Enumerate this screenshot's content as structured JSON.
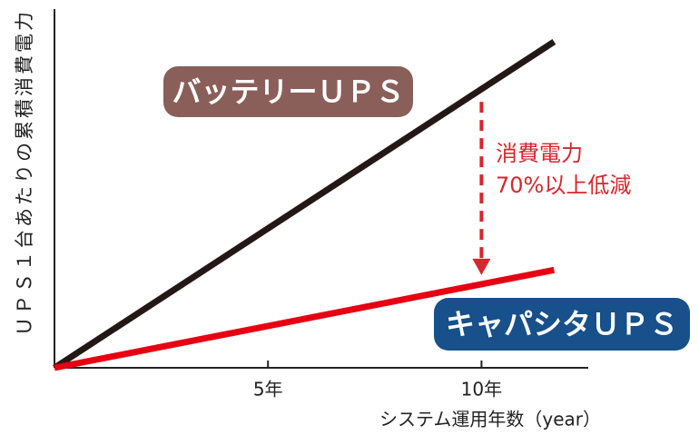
{
  "chart_data": {
    "type": "line",
    "x_label": "システム運用年数（year）",
    "y_label": "ＵＰＳ１台あたりの累積消費電力",
    "annotation": [
      "消費電力",
      "70%以上低減"
    ],
    "xlim": [
      0,
      12.5
    ],
    "xticks": [
      {
        "value": 5,
        "label": "5年"
      },
      {
        "value": 10,
        "label": "10年"
      }
    ],
    "ylim": [
      0,
      110
    ],
    "series": [
      {
        "name": "バッテリーＵＰＳ",
        "color": "#231815",
        "label_color": "#8a5f5a",
        "x": [
          0,
          11.7
        ],
        "values": [
          0,
          100
        ]
      },
      {
        "name": "キャパシタＵＰＳ",
        "color": "#e60012",
        "label_color": "#17508a",
        "x": [
          0,
          11.7
        ],
        "values": [
          0,
          30
        ]
      }
    ]
  }
}
